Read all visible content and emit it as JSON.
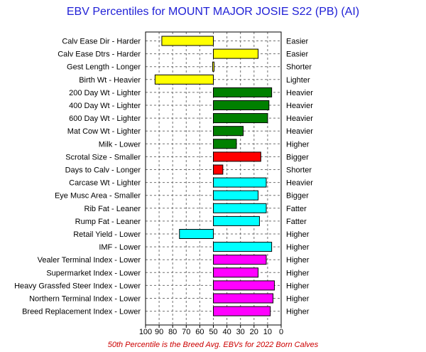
{
  "chart_data": {
    "type": "bar",
    "orientation": "horizontal",
    "title": "EBV Percentiles for MOUNT MAJOR JOSIE S22 (PB) (AI)",
    "footnote": "50th Percentile is the Breed Avg. EBVs for 2022 Born Calves",
    "xlim": [
      100,
      0
    ],
    "baseline": 50,
    "x_ticks": [
      100,
      90,
      80,
      70,
      60,
      50,
      40,
      30,
      20,
      10,
      0
    ],
    "grid": true,
    "rows": [
      {
        "left_label": "Calv Ease Dir - Harder",
        "right_label": "Easier",
        "value": 88,
        "color": "#ffff00"
      },
      {
        "left_label": "Calv Ease Dtrs - Harder",
        "right_label": "Easier",
        "value": 17,
        "color": "#ffff00"
      },
      {
        "left_label": "Gest Length - Longer",
        "right_label": "Shorter",
        "value": 49,
        "color": "#ffff00"
      },
      {
        "left_label": "Birth Wt - Heavier",
        "right_label": "Lighter",
        "value": 93,
        "color": "#ffff00"
      },
      {
        "left_label": "200 Day Wt - Lighter",
        "right_label": "Heavier",
        "value": 7,
        "color": "#008000"
      },
      {
        "left_label": "400 Day Wt - Lighter",
        "right_label": "Heavier",
        "value": 9,
        "color": "#008000"
      },
      {
        "left_label": "600 Day Wt - Lighter",
        "right_label": "Heavier",
        "value": 10,
        "color": "#008000"
      },
      {
        "left_label": "Mat Cow Wt - Lighter",
        "right_label": "Heavier",
        "value": 28,
        "color": "#008000"
      },
      {
        "left_label": "Milk - Lower",
        "right_label": "Higher",
        "value": 33,
        "color": "#008000"
      },
      {
        "left_label": "Scrotal Size - Smaller",
        "right_label": "Bigger",
        "value": 15,
        "color": "#ff0000"
      },
      {
        "left_label": "Days to Calv - Longer",
        "right_label": "Shorter",
        "value": 43,
        "color": "#ff0000"
      },
      {
        "left_label": "Carcase Wt - Lighter",
        "right_label": "Heavier",
        "value": 11,
        "color": "#00ffff"
      },
      {
        "left_label": "Eye Musc Area - Smaller",
        "right_label": "Bigger",
        "value": 17,
        "color": "#00ffff"
      },
      {
        "left_label": "Rib Fat - Leaner",
        "right_label": "Fatter",
        "value": 11,
        "color": "#00ffff"
      },
      {
        "left_label": "Rump Fat - Leaner",
        "right_label": "Fatter",
        "value": 16,
        "color": "#00ffff"
      },
      {
        "left_label": "Retail Yield - Lower",
        "right_label": "Higher",
        "value": 75,
        "color": "#00ffff"
      },
      {
        "left_label": "IMF - Lower",
        "right_label": "Higher",
        "value": 7,
        "color": "#00ffff"
      },
      {
        "left_label": "Vealer Terminal Index - Lower",
        "right_label": "Higher",
        "value": 11,
        "color": "#ff00ff"
      },
      {
        "left_label": "Supermarket Index - Lower",
        "right_label": "Higher",
        "value": 17,
        "color": "#ff00ff"
      },
      {
        "left_label": "Heavy Grassfed Steer Index - Lower",
        "right_label": "Higher",
        "value": 5,
        "color": "#ff00ff"
      },
      {
        "left_label": "Northern Terminal Index - Lower",
        "right_label": "Higher",
        "value": 6,
        "color": "#ff00ff"
      },
      {
        "left_label": "Breed Replacement Index - Lower",
        "right_label": "Higher",
        "value": 8,
        "color": "#ff00ff"
      }
    ]
  }
}
